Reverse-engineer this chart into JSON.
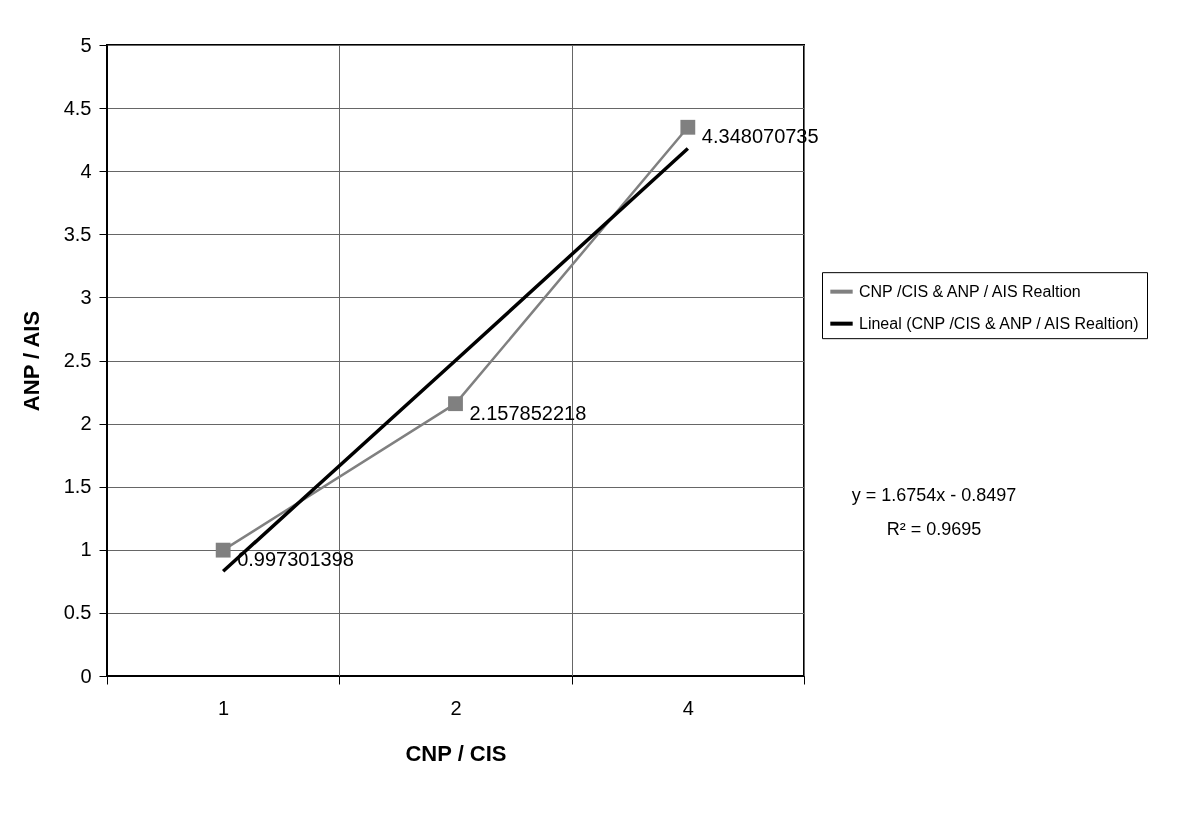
{
  "chart_data": {
    "type": "line",
    "xlabel": "CNP / CIS",
    "ylabel": "ANP / AIS",
    "categories": [
      "1",
      "2",
      "4"
    ],
    "series": [
      {
        "name": "CNP /CIS & ANP / AIS Realtion",
        "color": "#808080",
        "marker": "square",
        "values": [
          0.997301398,
          2.157852218,
          4.348070735
        ],
        "value_labels": [
          "0.997301398",
          "2.157852218",
          "4.348070735"
        ]
      },
      {
        "name": "Lineal (CNP /CIS & ANP / AIS Realtion)",
        "type": "line",
        "color": "#000000",
        "values": [
          0.83,
          2.5,
          4.18
        ]
      }
    ],
    "ylim": [
      0,
      5
    ],
    "yticks": [
      0,
      0.5,
      1,
      1.5,
      2,
      2.5,
      3,
      3.5,
      4,
      4.5,
      5
    ],
    "grid": true,
    "legend": "right",
    "annotations": [
      "y = 1.6754x - 0.8497",
      "R² = 0.9695"
    ]
  }
}
